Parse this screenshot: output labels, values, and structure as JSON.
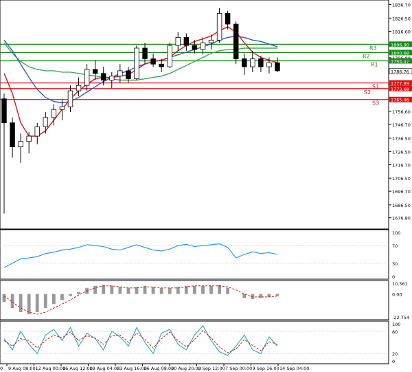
{
  "chart_data": {
    "type": "candlestick",
    "main_panel": {
      "y_ticks": [
        "1836.70",
        "1826.50",
        "1816.60",
        "1806.70",
        "1796.80",
        "1786.60",
        "1776.60",
        "1766.60",
        "1756.60",
        "1746.70",
        "1736.50",
        "1726.50",
        "1716.70",
        "1706.50",
        "1696.70",
        "1686.50",
        "1676.80"
      ],
      "ylim": [
        1671,
        1838
      ],
      "last_price": "1786.76",
      "level_lines": [
        {
          "name": "R3",
          "value": 1806.9,
          "label": "1806.90",
          "color": "#1a8a1a"
        },
        {
          "name": "R2",
          "value": 1800.68,
          "label": "1800.68",
          "color": "#1a8a1a"
        },
        {
          "name": "R1",
          "value": 1794.47,
          "label": "1794.47",
          "color": "#1a8a1a"
        },
        {
          "name": "S1",
          "value": 1777.89,
          "label": "1777.89",
          "color": "#e01010"
        },
        {
          "name": "S2",
          "value": 1773.68,
          "label": "1773.68",
          "color": "#e01010"
        },
        {
          "name": "S3",
          "value": 1765.46,
          "label": "1765.46",
          "color": "#e01010"
        }
      ],
      "extra_label": "1795.45",
      "ma_colors": {
        "fast": "#e01010",
        "mid": "#3355cc",
        "slow": "#3aaa5a"
      },
      "candles": [
        [
          1766,
          1770,
          1680,
          1748
        ],
        [
          1748,
          1752,
          1722,
          1730
        ],
        [
          1730,
          1740,
          1718,
          1734
        ],
        [
          1734,
          1741,
          1725,
          1738
        ],
        [
          1738,
          1748,
          1732,
          1745
        ],
        [
          1745,
          1756,
          1740,
          1752
        ],
        [
          1752,
          1762,
          1746,
          1758
        ],
        [
          1758,
          1765,
          1750,
          1760
        ],
        [
          1760,
          1776,
          1756,
          1772
        ],
        [
          1772,
          1782,
          1768,
          1776
        ],
        [
          1776,
          1792,
          1772,
          1788
        ],
        [
          1788,
          1795,
          1780,
          1785
        ],
        [
          1785,
          1790,
          1776,
          1780
        ],
        [
          1780,
          1786,
          1774,
          1783
        ],
        [
          1783,
          1792,
          1778,
          1787
        ],
        [
          1787,
          1790,
          1778,
          1781
        ],
        [
          1781,
          1806,
          1780,
          1804
        ],
        [
          1804,
          1808,
          1792,
          1796
        ],
        [
          1796,
          1800,
          1790,
          1792
        ],
        [
          1792,
          1796,
          1786,
          1790
        ],
        [
          1790,
          1808,
          1789,
          1806
        ],
        [
          1806,
          1816,
          1802,
          1812
        ],
        [
          1812,
          1815,
          1802,
          1806
        ],
        [
          1806,
          1810,
          1800,
          1803
        ],
        [
          1803,
          1812,
          1799,
          1808
        ],
        [
          1808,
          1814,
          1803,
          1810
        ],
        [
          1810,
          1834,
          1808,
          1830
        ],
        [
          1830,
          1832,
          1818,
          1822
        ],
        [
          1822,
          1824,
          1792,
          1796
        ],
        [
          1796,
          1800,
          1784,
          1790
        ],
        [
          1790,
          1802,
          1786,
          1796
        ],
        [
          1796,
          1798,
          1786,
          1790
        ],
        [
          1790,
          1797,
          1785,
          1793
        ],
        [
          1793,
          1797,
          1786,
          1787
        ]
      ],
      "fast_ma": [
        1785,
        1770,
        1748,
        1738,
        1738,
        1742,
        1750,
        1758,
        1766,
        1772,
        1777,
        1781,
        1782,
        1782,
        1783,
        1784,
        1788,
        1792,
        1794,
        1795,
        1797,
        1802,
        1806,
        1809,
        1811,
        1813,
        1817,
        1820,
        1816,
        1808,
        1801,
        1797,
        1795,
        1793
      ],
      "mid_ma": [
        1810,
        1802,
        1792,
        1782,
        1773,
        1767,
        1764,
        1763,
        1764,
        1767,
        1771,
        1775,
        1779,
        1782,
        1785,
        1787,
        1790,
        1792,
        1794,
        1795,
        1797,
        1799,
        1801,
        1803,
        1805,
        1807,
        1810,
        1812,
        1813,
        1812,
        1810,
        1809,
        1807,
        1805
      ],
      "slow_ma": [
        1808,
        1800,
        1794,
        1790,
        1788,
        1787,
        1787,
        1786,
        1786,
        1785,
        1784,
        1783,
        1782,
        1781,
        1780,
        1780,
        1780,
        1781,
        1782,
        1783,
        1785,
        1788,
        1791,
        1794,
        1797,
        1800,
        1802,
        1803,
        1803,
        1804,
        1804,
        1804,
        1804,
        1804
      ]
    },
    "rsi_panel": {
      "y_ticks": [
        "100",
        "70",
        "30",
        "0"
      ],
      "ylim": [
        0,
        100
      ],
      "values": [
        20,
        30,
        40,
        42,
        45,
        52,
        55,
        60,
        62,
        66,
        72,
        70,
        68,
        62,
        60,
        66,
        72,
        66,
        60,
        58,
        62,
        70,
        73,
        68,
        70,
        72,
        74,
        66,
        42,
        50,
        56,
        52,
        54,
        50
      ]
    },
    "macd_panel": {
      "y_ticks": [
        "10.561",
        "0.00",
        "-22.754"
      ],
      "ylim": [
        -22.754,
        10.561
      ],
      "histogram": [
        -8,
        -14,
        -18,
        -20,
        -18,
        -14,
        -10,
        -6,
        -2,
        2,
        6,
        8,
        9,
        8,
        7,
        6,
        7,
        8,
        7,
        6,
        6,
        7,
        8,
        8,
        8,
        8,
        9,
        6,
        0,
        -4,
        -5,
        -4,
        -3,
        -2
      ],
      "signal": [
        -2,
        -8,
        -14,
        -18,
        -20,
        -18,
        -14,
        -10,
        -6,
        -1,
        3,
        6,
        8,
        8,
        7,
        6,
        6,
        7,
        7,
        6,
        6,
        6,
        7,
        8,
        8,
        8,
        8,
        7,
        4,
        0,
        -3,
        -3,
        -3,
        -2
      ]
    },
    "stoch_panel": {
      "y_ticks": [
        "100",
        "80",
        "20",
        "0"
      ],
      "ylim": [
        0,
        100
      ],
      "k": [
        60,
        30,
        80,
        45,
        20,
        70,
        85,
        55,
        90,
        40,
        75,
        60,
        30,
        80,
        65,
        40,
        90,
        50,
        20,
        75,
        85,
        45,
        30,
        70,
        95,
        55,
        25,
        15,
        40,
        70,
        30,
        20,
        65,
        40
      ],
      "d": [
        55,
        40,
        60,
        55,
        35,
        55,
        70,
        62,
        78,
        55,
        68,
        62,
        45,
        68,
        70,
        50,
        75,
        58,
        35,
        60,
        78,
        55,
        38,
        58,
        82,
        62,
        38,
        22,
        32,
        58,
        42,
        28,
        52,
        45
      ]
    },
    "x_ticks": [
      "9 Aug 08:00",
      "12 Aug 00:00",
      "16 Aug 12:00",
      "19 Aug 04:00",
      "23 Aug 16:00",
      "26 Aug 08:00",
      "30 Aug 20:00",
      "2 Sep 12:00",
      "7 Sep 00:00",
      "9 Sep 16:00",
      "14 Sep 04:00"
    ],
    "x_tick_first_label": "0"
  }
}
